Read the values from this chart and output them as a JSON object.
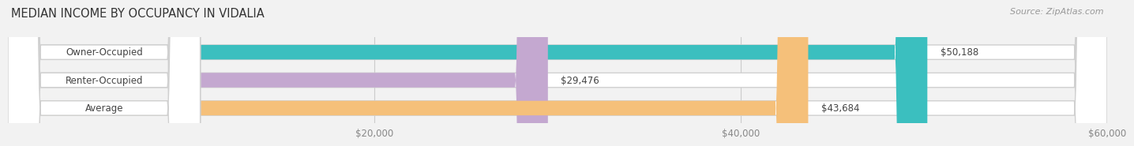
{
  "title": "MEDIAN INCOME BY OCCUPANCY IN VIDALIA",
  "source": "Source: ZipAtlas.com",
  "categories": [
    "Owner-Occupied",
    "Renter-Occupied",
    "Average"
  ],
  "values": [
    50188,
    29476,
    43684
  ],
  "bar_colors": [
    "#3bbfbf",
    "#c4a8d0",
    "#f5c07a"
  ],
  "value_labels": [
    "$50,188",
    "$29,476",
    "$43,684"
  ],
  "xlim": [
    0,
    60000
  ],
  "xticks": [
    20000,
    40000,
    60000
  ],
  "xtick_labels": [
    "$20,000",
    "$40,000",
    "$60,000"
  ],
  "background_color": "#f2f2f2",
  "bar_bg_color": "#ffffff",
  "bar_outline_color": "#d0d0d0",
  "title_fontsize": 10.5,
  "label_fontsize": 8.5,
  "value_fontsize": 8.5,
  "source_fontsize": 8,
  "label_pill_color": "#ffffff",
  "label_text_color": "#444444",
  "value_text_color": "#444444",
  "xtick_color": "#888888"
}
